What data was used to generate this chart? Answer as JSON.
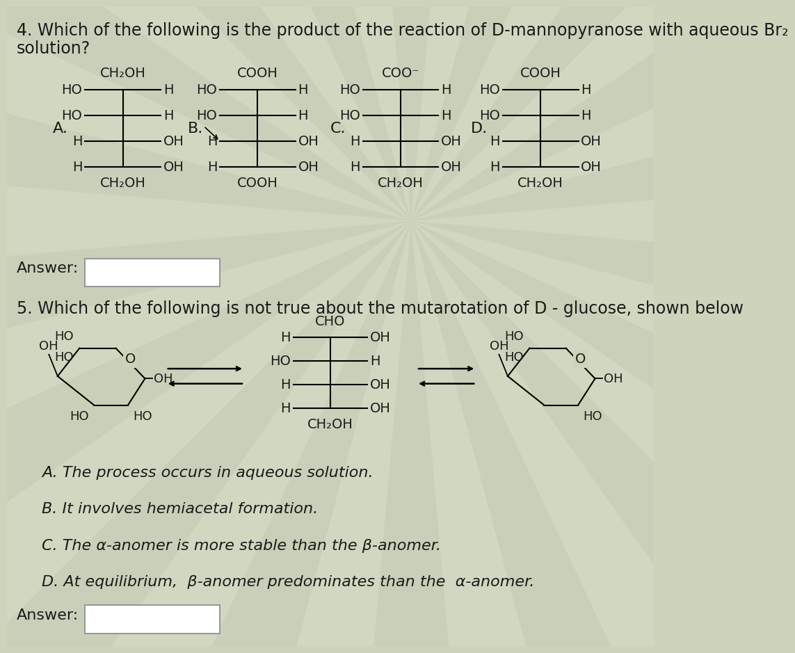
{
  "bg_color": "#cdd4bc",
  "text_color": "#1a1a1a",
  "q4_title_line1": "4. Which of the following is the product of the reaction of D-mannopyranose with aqueous Br₂",
  "q4_title_line2": "solution?",
  "q5_title": "5. Which of the following is not true about the mutarotation of D - glucose, shown below",
  "q5_options": [
    "A. The process occurs in aqueous solution.",
    "B. It involves hemiacetal formation.",
    "C. The α-anomer is more stable than the β-anomer.",
    "D. At equilibrium,  β-anomer predominates than the  α-anomer."
  ],
  "font_size_title": 17,
  "font_size_body": 16,
  "font_size_chem": 14,
  "font_size_label": 16
}
